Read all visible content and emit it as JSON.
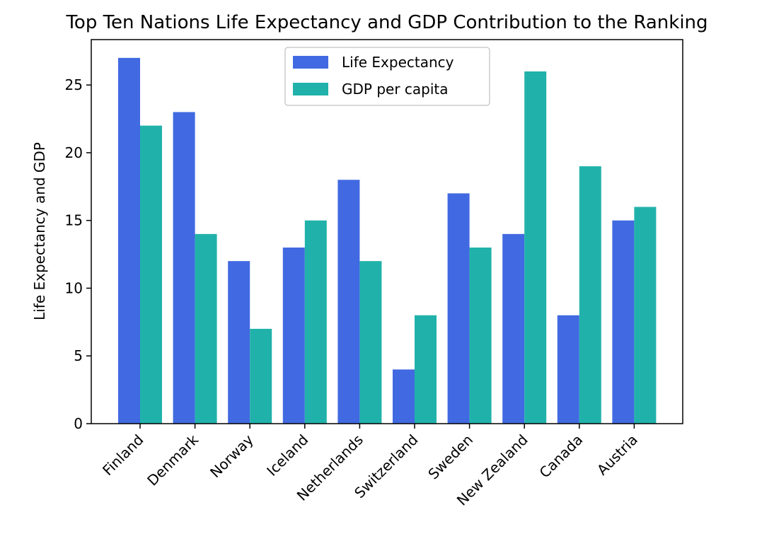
{
  "chart_data": {
    "type": "bar",
    "title": "Top Ten Nations Life Expectancy and GDP Contribution to the Ranking",
    "xlabel": "",
    "ylabel": "Life Expectancy and GDP",
    "categories": [
      "Finland",
      "Denmark",
      "Norway",
      "Iceland",
      "Netherlands",
      "Switzerland",
      "Sweden",
      "New Zealand",
      "Canada",
      "Austria"
    ],
    "series": [
      {
        "name": "Life Expectancy",
        "color": "#4169e1",
        "values": [
          27,
          23,
          12,
          13,
          18,
          4,
          17,
          14,
          8,
          15
        ]
      },
      {
        "name": "GDP per capita",
        "color": "#20b2aa",
        "values": [
          22,
          14,
          7,
          15,
          12,
          8,
          13,
          26,
          19,
          16
        ]
      }
    ],
    "ylim": [
      0,
      28.35
    ],
    "yticks": [
      0,
      5,
      10,
      15,
      20,
      25
    ],
    "grid": false,
    "legend_position": "upper center",
    "xtick_rotation": 45
  }
}
